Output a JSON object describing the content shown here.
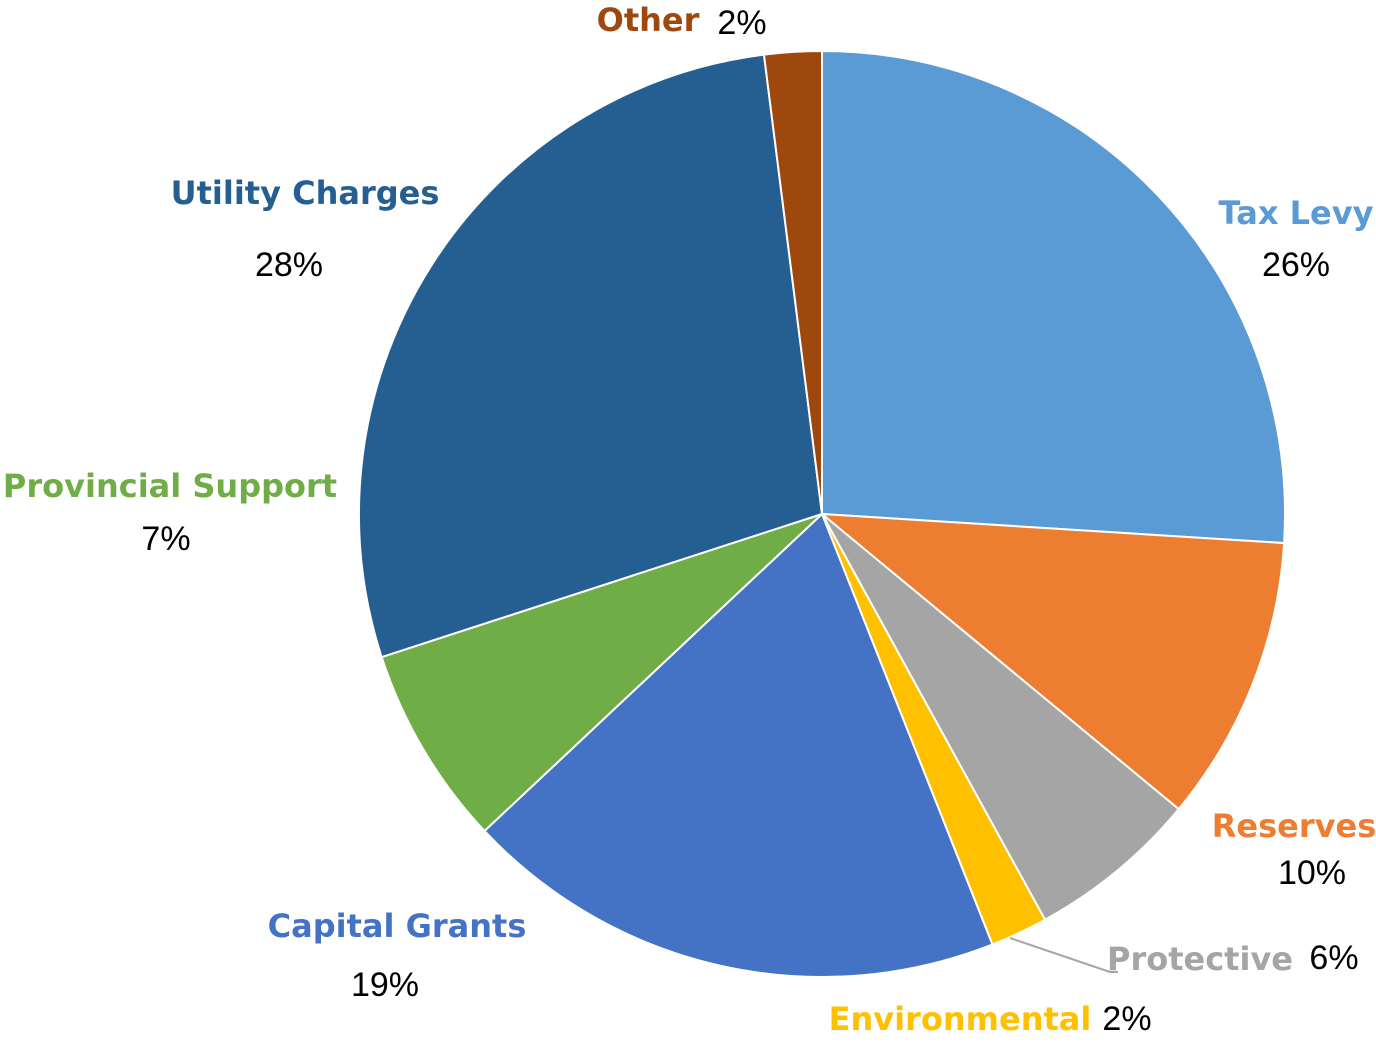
{
  "chart_data": {
    "type": "pie",
    "categories": [
      "Tax Levy",
      "Reserves",
      "Protective",
      "Environmental",
      "Capital Grants",
      "Provincial Support",
      "Utility Charges",
      "Other"
    ],
    "values": [
      26,
      10,
      6,
      2,
      19,
      7,
      28,
      2
    ],
    "value_labels": [
      "26%",
      "10%",
      "6%",
      "2%",
      "19%",
      "7%",
      "28%",
      "2%"
    ],
    "colors": [
      "#5b9bd5",
      "#ed7d31",
      "#a5a5a5",
      "#ffc000",
      "#4472c4",
      "#70ad47",
      "#255e91",
      "#9e480e"
    ]
  }
}
